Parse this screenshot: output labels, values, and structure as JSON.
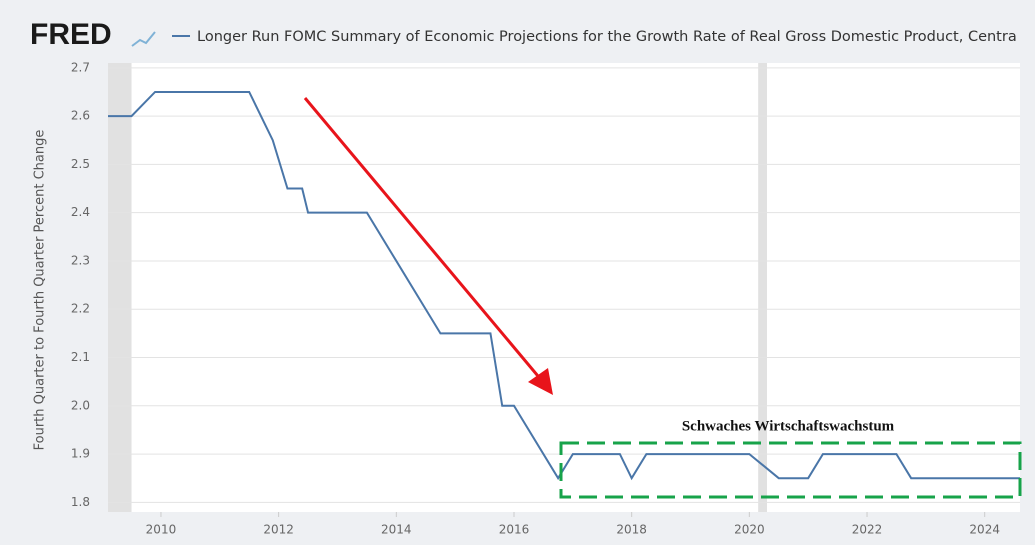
{
  "chart_data": {
    "type": "line",
    "logo": "FRED",
    "ylabel": "Fourth Quarter to Fourth Quarter Percent Change",
    "annotation": "Schwaches Wirtschaftswachstum",
    "x": [
      2009.1,
      2009.5,
      2009.9,
      2011.5,
      2011.9,
      2012.15,
      2012.4,
      2012.5,
      2013.5,
      2014.0,
      2014.5,
      2014.75,
      2015.6,
      2015.8,
      2016.0,
      2016.75,
      2017.0,
      2017.8,
      2018.0,
      2018.25,
      2020.0,
      2020.5,
      2021.0,
      2021.25,
      2022.5,
      2022.75,
      2024.6
    ],
    "series": [
      {
        "name": "Longer Run FOMC Summary of Economic Projections for the Growth Rate of Real Gross Domestic Product, Centra",
        "color": "#4a76a8",
        "values": [
          2.6,
          2.6,
          2.65,
          2.65,
          2.55,
          2.45,
          2.45,
          2.4,
          2.4,
          2.3,
          2.2,
          2.15,
          2.15,
          2.0,
          2.0,
          1.85,
          1.9,
          1.9,
          1.85,
          1.9,
          1.9,
          1.85,
          1.85,
          1.9,
          1.9,
          1.85,
          1.85
        ]
      }
    ],
    "recessions": [
      {
        "start": 2009.1,
        "end": 2009.5
      },
      {
        "start": 2020.15,
        "end": 2020.3
      }
    ],
    "recession_color": "#e1e1e1",
    "xlim": [
      2009.1,
      2024.6
    ],
    "xticks": [
      2010,
      2012,
      2014,
      2016,
      2018,
      2020,
      2022,
      2024
    ],
    "ylim": [
      1.78,
      2.71
    ],
    "yticks": [
      1.8,
      1.9,
      {
        "value": 2,
        "label": "2.0"
      },
      2.1,
      2.2,
      2.3,
      2.4,
      2.5,
      2.6,
      2.7
    ],
    "grid": true
  }
}
